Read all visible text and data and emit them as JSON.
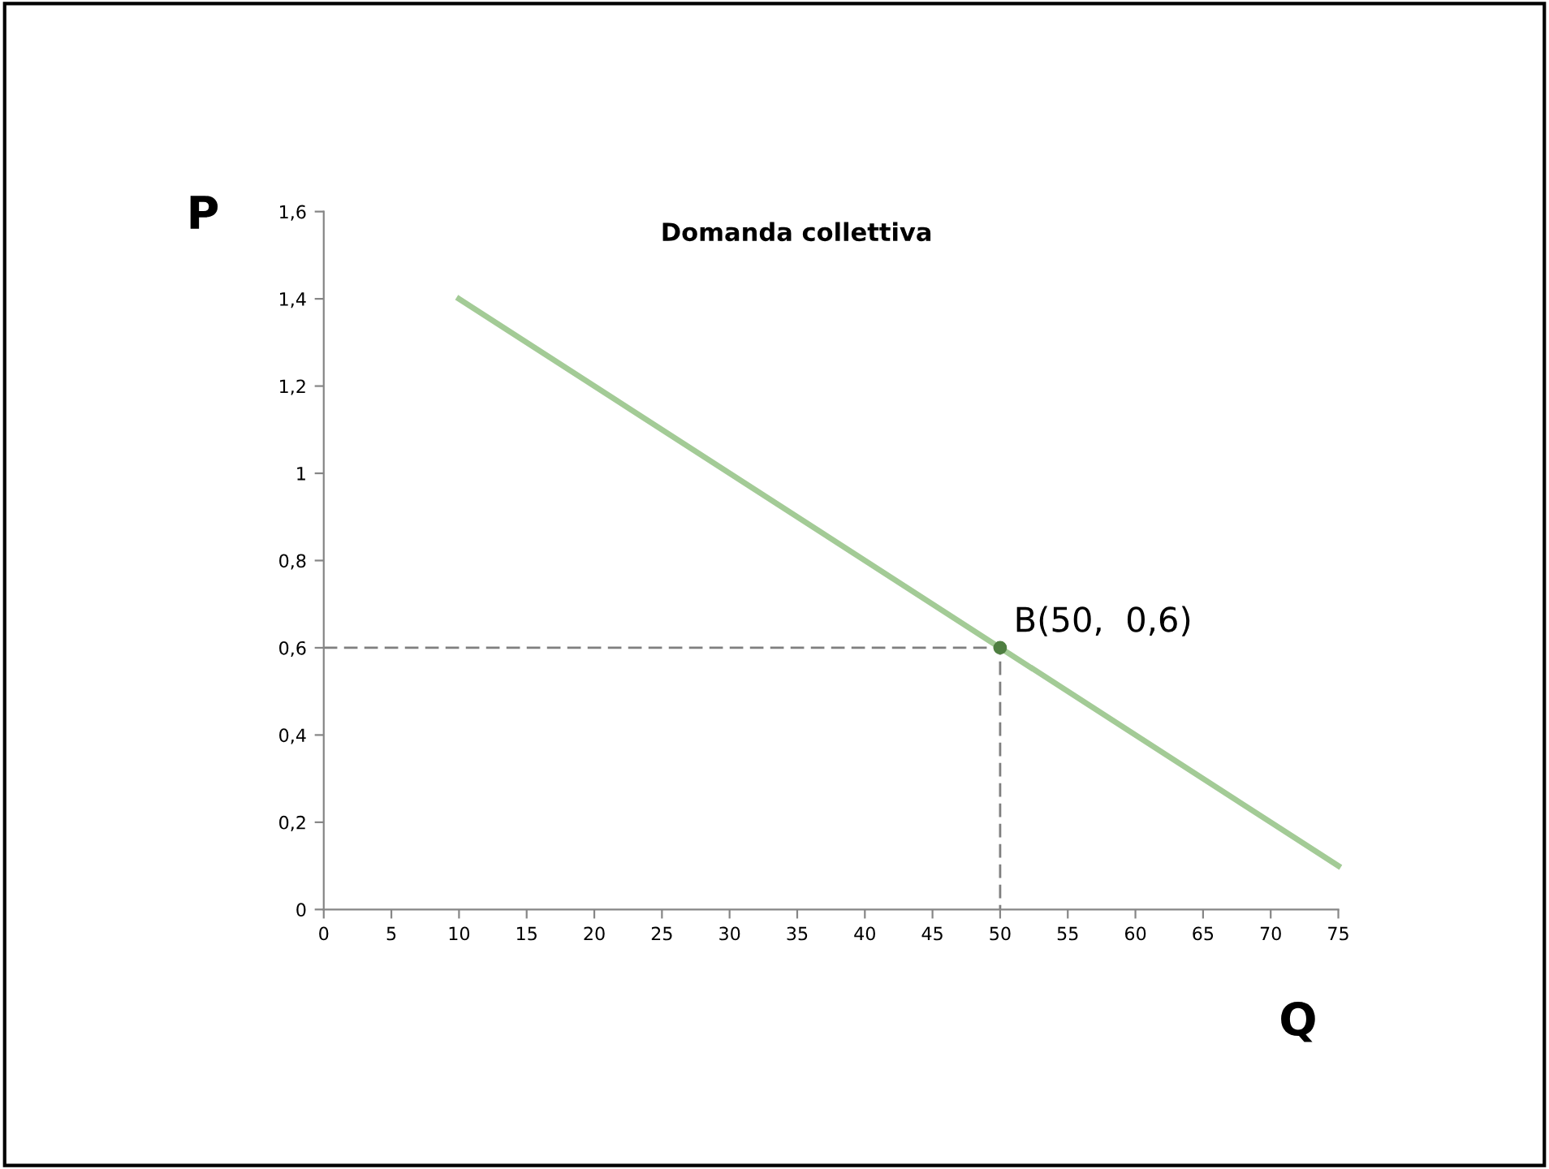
{
  "chart_data": {
    "type": "line",
    "title": "Domanda collettiva",
    "xlabel": "Q",
    "ylabel": "P",
    "xlim": [
      0,
      75
    ],
    "ylim": [
      0,
      1.6
    ],
    "xticks": [
      0,
      5,
      10,
      15,
      20,
      25,
      30,
      35,
      40,
      45,
      50,
      55,
      60,
      65,
      70,
      75
    ],
    "yticks": [
      0,
      {
        "value": 0.2,
        "label": "0,2"
      },
      {
        "value": 0.4,
        "label": "0,4"
      },
      {
        "value": 0.6,
        "label": "0,6"
      },
      {
        "value": 0.8,
        "label": "0,8"
      },
      1,
      {
        "value": 1.2,
        "label": "1,2"
      },
      {
        "value": 1.4,
        "label": "1,4"
      },
      {
        "value": 1.6,
        "label": "1,6"
      }
    ],
    "grid": false,
    "legend": false,
    "series": [
      {
        "color": "#a3cb96",
        "line_style": "solid",
        "x": [
          10,
          75
        ],
        "values": [
          1.4,
          0.1
        ]
      },
      {
        "color": "#7f7f7f",
        "line_style": "dashed",
        "x": [
          0,
          50,
          50
        ],
        "values": [
          0.6,
          0.6,
          0
        ]
      },
      {
        "type": "scatter",
        "color": "#4f7f42",
        "marker": "circle",
        "x": [
          50
        ],
        "values": [
          0.6
        ]
      }
    ],
    "annotations": [
      {
        "text": "B(50,  0,6)",
        "x": 50,
        "y": 0.6
      }
    ]
  }
}
